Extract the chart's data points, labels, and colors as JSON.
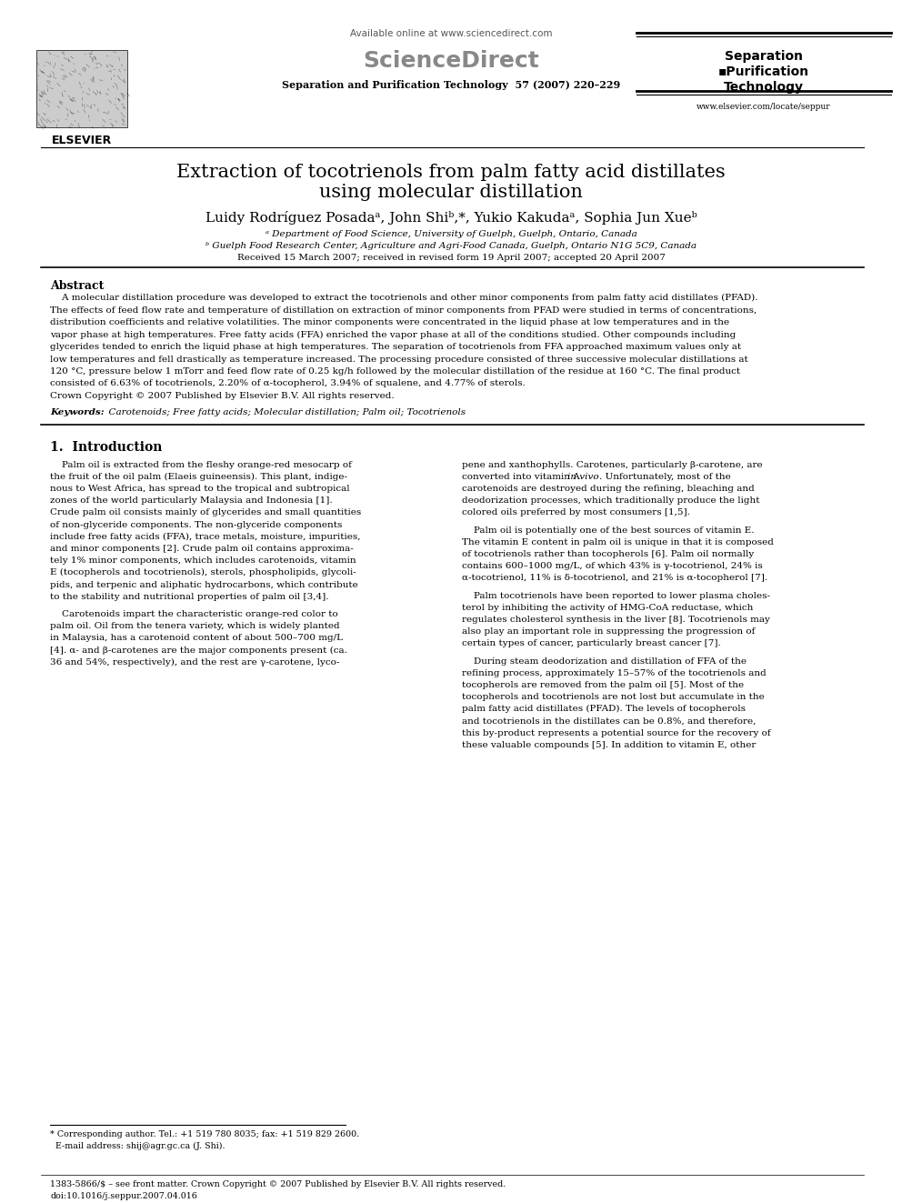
{
  "title_line1": "Extraction of tocotrienols from palm fatty acid distillates",
  "title_line2": "using molecular distillation",
  "authors": "Luidy Rodríguez Posadaᵃ, John Shiᵇ,*, Yukio Kakudaᵃ, Sophia Jun Xueᵇ",
  "affil_a": "ᵃ Department of Food Science, University of Guelph, Guelph, Ontario, Canada",
  "affil_b": "ᵇ Guelph Food Research Center, Agriculture and Agri-Food Canada, Guelph, Ontario N1G 5C9, Canada",
  "received": "Received 15 March 2007; received in revised form 19 April 2007; accepted 20 April 2007",
  "abstract_title": "Abstract",
  "keywords_label": "Keywords:",
  "keywords_text": "  Carotenoids; Free fatty acids; Molecular distillation; Palm oil; Tocotrienols",
  "section1_title": "1.  Introduction",
  "header_top": "Available online at www.sciencedirect.com",
  "header_sd": "ScienceDirect",
  "header_journal": "Separation and Purification Technology  57 (2007) 220–229",
  "right_line1": "Separation",
  "right_line2": "▪Purification",
  "right_line3": "Technology",
  "right_url": "www.elsevier.com/locate/seppur",
  "elsevier_label": "ELSEVIER",
  "footnote1": "* Corresponding author. Tel.: +1 519 780 8035; fax: +1 519 829 2600.",
  "footnote2": "  E-mail address: shij@agr.gc.ca (J. Shi).",
  "footer1": "1383-5866/$ – see front matter. Crown Copyright © 2007 Published by Elsevier B.V. All rights reserved.",
  "footer2": "doi:10.1016/j.seppur.2007.04.016",
  "bg": "#ffffff",
  "black": "#000000",
  "gray": "#888888",
  "darkgray": "#444444"
}
